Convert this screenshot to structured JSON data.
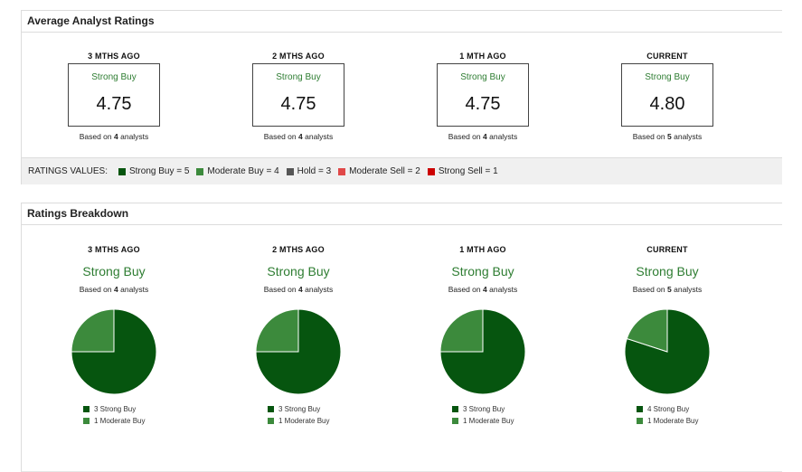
{
  "colors": {
    "strong_buy": "#06550f",
    "moderate_buy": "#3c8a3c",
    "hold": "#555555",
    "moderate_sell": "#e04848",
    "strong_sell": "#cc0000",
    "label_green": "#2e7d32"
  },
  "average": {
    "title": "Average Analyst Ratings",
    "periods": [
      {
        "head": "3 MTHS AGO",
        "label": "Strong Buy",
        "score": "4.75",
        "based_prefix": "Based on",
        "count": "4",
        "based_suffix": "analysts"
      },
      {
        "head": "2 MTHS AGO",
        "label": "Strong Buy",
        "score": "4.75",
        "based_prefix": "Based on",
        "count": "4",
        "based_suffix": "analysts"
      },
      {
        "head": "1 MTH AGO",
        "label": "Strong Buy",
        "score": "4.75",
        "based_prefix": "Based on",
        "count": "4",
        "based_suffix": "analysts"
      },
      {
        "head": "CURRENT",
        "label": "Strong Buy",
        "score": "4.80",
        "based_prefix": "Based on",
        "count": "5",
        "based_suffix": "analysts"
      }
    ],
    "values_title": "RATINGS VALUES:",
    "values": [
      {
        "text": "Strong Buy = 5",
        "color": "#06550f"
      },
      {
        "text": "Moderate Buy = 4",
        "color": "#3c8a3c"
      },
      {
        "text": "Hold = 3",
        "color": "#555555"
      },
      {
        "text": "Moderate Sell = 2",
        "color": "#e04848"
      },
      {
        "text": "Strong Sell = 1",
        "color": "#cc0000"
      }
    ]
  },
  "breakdown": {
    "title": "Ratings Breakdown",
    "periods": [
      {
        "head": "3 MTHS AGO",
        "label": "Strong Buy",
        "based_prefix": "Based on",
        "count": "4",
        "based_suffix": "analysts",
        "legend": [
          "3 Strong Buy",
          "1 Moderate Buy"
        ]
      },
      {
        "head": "2 MTHS AGO",
        "label": "Strong Buy",
        "based_prefix": "Based on",
        "count": "4",
        "based_suffix": "analysts",
        "legend": [
          "3 Strong Buy",
          "1 Moderate Buy"
        ]
      },
      {
        "head": "1 MTH AGO",
        "label": "Strong Buy",
        "based_prefix": "Based on",
        "count": "4",
        "based_suffix": "analysts",
        "legend": [
          "3 Strong Buy",
          "1 Moderate Buy"
        ]
      },
      {
        "head": "CURRENT",
        "label": "Strong Buy",
        "based_prefix": "Based on",
        "count": "5",
        "based_suffix": "analysts",
        "legend": [
          "4 Strong Buy",
          "1 Moderate Buy"
        ]
      }
    ]
  },
  "chart_data": [
    {
      "type": "pie",
      "title": "3 MTHS AGO",
      "categories": [
        "Strong Buy",
        "Moderate Buy"
      ],
      "values": [
        3,
        1
      ]
    },
    {
      "type": "pie",
      "title": "2 MTHS AGO",
      "categories": [
        "Strong Buy",
        "Moderate Buy"
      ],
      "values": [
        3,
        1
      ]
    },
    {
      "type": "pie",
      "title": "1 MTH AGO",
      "categories": [
        "Strong Buy",
        "Moderate Buy"
      ],
      "values": [
        3,
        1
      ]
    },
    {
      "type": "pie",
      "title": "CURRENT",
      "categories": [
        "Strong Buy",
        "Moderate Buy"
      ],
      "values": [
        4,
        1
      ]
    }
  ]
}
